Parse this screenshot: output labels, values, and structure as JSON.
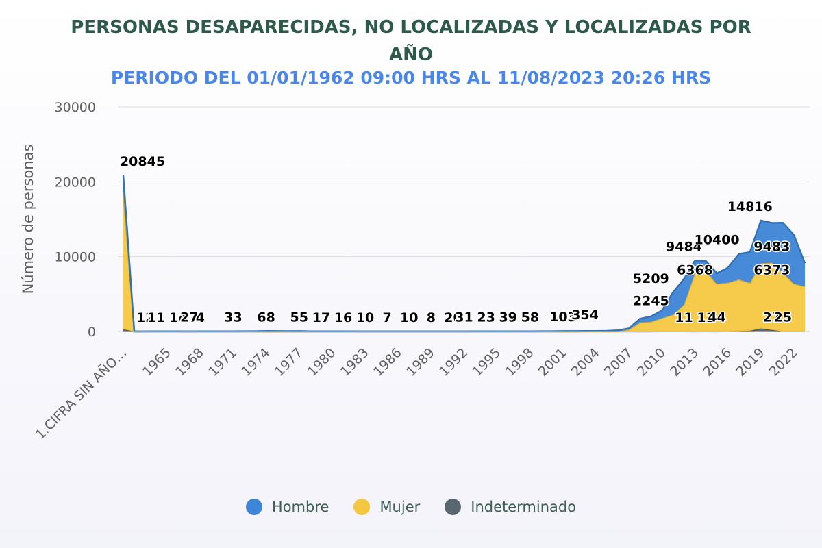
{
  "chart_data": {
    "type": "area",
    "title": "PERSONAS DESAPARECIDAS, NO LOCALIZADAS Y LOCALIZADAS POR AÑO",
    "subtitle": "PERIODO DEL 01/01/1962 09:00 HRS AL 11/08/2023 20:26 HRS",
    "ylabel": "Número de personas",
    "xlabel": "",
    "ylim": [
      0,
      30000
    ],
    "yticks": [
      0,
      10000,
      20000,
      30000
    ],
    "stacking": "normal",
    "grid": "horizontal",
    "legend_position": "bottom-center",
    "x_tick_labels": [
      "1.CIFRA SIN AÑO…",
      "1965",
      "1968",
      "1971",
      "1974",
      "1977",
      "1980",
      "1983",
      "1986",
      "1989",
      "1992",
      "1995",
      "1998",
      "2001",
      "2004",
      "2007",
      "2010",
      "2013",
      "2016",
      "2019",
      "2022"
    ],
    "categories": [
      "1.CIFRA SIN AÑO DE REFERENCIA",
      "1962",
      "1963",
      "1964",
      "1965",
      "1966",
      "1967",
      "1968",
      "1969",
      "1970",
      "1971",
      "1972",
      "1973",
      "1974",
      "1975",
      "1976",
      "1977",
      "1978",
      "1979",
      "1980",
      "1981",
      "1982",
      "1983",
      "1984",
      "1985",
      "1986",
      "1987",
      "1988",
      "1989",
      "1990",
      "1991",
      "1992",
      "1993",
      "1994",
      "1995",
      "1996",
      "1997",
      "1998",
      "1999",
      "2000",
      "2001",
      "2002",
      "2003",
      "2004",
      "2005",
      "2006",
      "2007",
      "2008",
      "2009",
      "2010",
      "2011",
      "2012",
      "2013",
      "2014",
      "2015",
      "2016",
      "2017",
      "2018",
      "2019",
      "2020",
      "2021",
      "2022",
      "2023"
    ],
    "series": [
      {
        "name": "Indeterminado",
        "color": "#5a6670",
        "values": [
          300,
          2,
          1,
          1,
          1,
          1,
          1,
          1,
          1,
          1,
          2,
          2,
          3,
          4,
          3,
          3,
          4,
          2,
          2,
          1,
          1,
          1,
          1,
          1,
          1,
          1,
          1,
          1,
          1,
          1,
          1,
          1,
          1,
          1,
          1,
          1,
          2,
          2,
          3,
          3,
          4,
          4,
          5,
          5,
          6,
          8,
          8,
          10,
          12,
          15,
          20,
          22,
          11,
          15,
          11,
          44,
          60,
          100,
          400,
          200,
          27,
          25,
          20
        ]
      },
      {
        "name": "Mujer",
        "color": "#f5c842",
        "values": [
          18500,
          4,
          3,
          3,
          3,
          3,
          3,
          3,
          3,
          4,
          6,
          6,
          7,
          10,
          8,
          8,
          9,
          5,
          4,
          3,
          3,
          3,
          3,
          3,
          3,
          2,
          2,
          2,
          2,
          2,
          2,
          2,
          3,
          3,
          3,
          3,
          4,
          4,
          6,
          6,
          8,
          9,
          10,
          12,
          15,
          22,
          270,
          1200,
          1300,
          1800,
          2245,
          3600,
          7800,
          8000,
          6368,
          6500,
          6900,
          6400,
          8700,
          9000,
          7800,
          6373,
          6000
        ]
      },
      {
        "name": "Hombre",
        "color": "#3d85d6",
        "values": [
          2045,
          6,
          7,
          10,
          10,
          10,
          8,
          10,
          12,
          14,
          20,
          25,
          30,
          54,
          40,
          35,
          42,
          20,
          15,
          11,
          12,
          10,
          8,
          8,
          7,
          4,
          5,
          5,
          5,
          5,
          5,
          6,
          10,
          12,
          15,
          12,
          18,
          20,
          25,
          30,
          40,
          45,
          50,
          60,
          75,
          130,
          150,
          500,
          700,
          1000,
          2944,
          3400,
          1673,
          1400,
          1400,
          2000,
          3400,
          4100,
          5716,
          5300,
          6700,
          6500,
          3100
        ]
      }
    ],
    "data_labels": [
      {
        "category": "1.CIFRA SIN AÑO DE REFERENCIA",
        "text": "20845",
        "y": 20845
      },
      {
        "category": "1963",
        "text": "12",
        "y": 12
      },
      {
        "category": "1964",
        "text": "11",
        "y": 11
      },
      {
        "category": "1966",
        "text": "14",
        "y": 14
      },
      {
        "category": "1967",
        "text": "27",
        "y": 27
      },
      {
        "category": "1968",
        "text": "4",
        "y": 4
      },
      {
        "category": "1971",
        "text": "33",
        "y": 33
      },
      {
        "category": "1974",
        "text": "68",
        "y": 68
      },
      {
        "category": "1977",
        "text": "55",
        "y": 55
      },
      {
        "category": "1979",
        "text": "17",
        "y": 17
      },
      {
        "category": "1981",
        "text": "16",
        "y": 16
      },
      {
        "category": "1983",
        "text": "10",
        "y": 10
      },
      {
        "category": "1985",
        "text": "7",
        "y": 7
      },
      {
        "category": "1987",
        "text": "10",
        "y": 10
      },
      {
        "category": "1989",
        "text": "8",
        "y": 8
      },
      {
        "category": "1991",
        "text": "20",
        "y": 20
      },
      {
        "category": "1992",
        "text": "31",
        "y": 31
      },
      {
        "category": "1994",
        "text": "23",
        "y": 23
      },
      {
        "category": "1996",
        "text": "39",
        "y": 39
      },
      {
        "category": "1998",
        "text": "58",
        "y": 58
      },
      {
        "category": "2001",
        "text": "103",
        "y": 103
      },
      {
        "category": "2003",
        "text": "354",
        "y": 354
      },
      {
        "category": "2009",
        "text": "5209",
        "y": 5209
      },
      {
        "category": "2009",
        "text": "2245",
        "y": 2245
      },
      {
        "category": "2012",
        "text": "9484",
        "y": 9484
      },
      {
        "category": "2012",
        "text": "11",
        "y": 11
      },
      {
        "category": "2013",
        "text": "6368",
        "y": 6368
      },
      {
        "category": "2014",
        "text": "11",
        "y": 11
      },
      {
        "category": "2015",
        "text": "10400",
        "y": 10400
      },
      {
        "category": "2015",
        "text": "44",
        "y": 44
      },
      {
        "category": "2018",
        "text": "14816",
        "y": 14816
      },
      {
        "category": "2020",
        "text": "9483",
        "y": 9483
      },
      {
        "category": "2020",
        "text": "6373",
        "y": 6373
      },
      {
        "category": "2020",
        "text": "27",
        "y": 27
      },
      {
        "category": "2021",
        "text": "25",
        "y": 25
      }
    ]
  },
  "legend": {
    "items": [
      {
        "label": "Hombre",
        "color": "#3d85d6"
      },
      {
        "label": "Mujer",
        "color": "#f5c842"
      },
      {
        "label": "Indeterminado",
        "color": "#5a6670"
      }
    ]
  }
}
